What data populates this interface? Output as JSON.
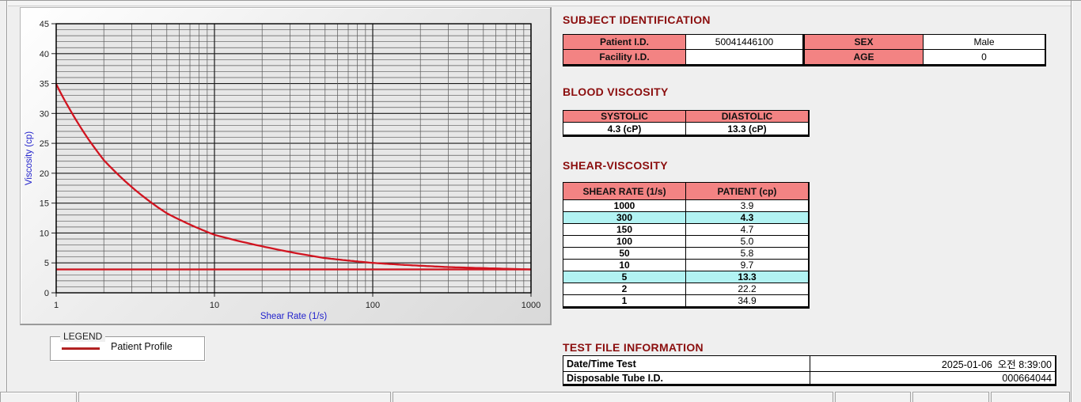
{
  "colors": {
    "title": "#8b0e0e",
    "header_pink": "#f38383",
    "highlight_cyan": "#b2f3f3",
    "series_red": "#d11420",
    "legend_red": "#b22222",
    "axis_label_blue": "#2222cc"
  },
  "chart_data": {
    "type": "line",
    "title": "",
    "xlabel": "Shear Rate (1/s)",
    "ylabel": "Viscosity (cp)",
    "x_scale": "log",
    "xlim": [
      1,
      1000
    ],
    "ylim": [
      0,
      45
    ],
    "y_tick_step_major": 5,
    "y_tick_step_minor": 1,
    "x_ticks": [
      1,
      10,
      100,
      1000
    ],
    "grid": true,
    "legend_position": "below-left",
    "series": [
      {
        "name": "Patient Profile",
        "color": "#d11420",
        "x": [
          1,
          2,
          5,
          10,
          50,
          100,
          150,
          300,
          1000
        ],
        "y": [
          34.9,
          22.2,
          13.3,
          9.7,
          5.8,
          5.0,
          4.7,
          4.3,
          3.9
        ]
      },
      {
        "name": "High-shear asymptote line",
        "color": "#d11420",
        "x": [
          1,
          1000
        ],
        "y": [
          3.9,
          3.9
        ]
      }
    ]
  },
  "legend": {
    "title": "LEGEND",
    "entries": [
      {
        "label": "Patient Profile",
        "color": "#b22222"
      }
    ]
  },
  "subject_identification": {
    "title": "SUBJECT IDENTIFICATION",
    "patient_id_label": "Patient I.D.",
    "patient_id_value": "50041446100",
    "facility_id_label": "Facility I.D.",
    "facility_id_value": "",
    "sex_label": "SEX",
    "sex_value": "Male",
    "age_label": "AGE",
    "age_value": "0"
  },
  "blood_viscosity": {
    "title": "BLOOD VISCOSITY",
    "systolic_label": "SYSTOLIC",
    "diastolic_label": "DIASTOLIC",
    "systolic_value": "4.3 (cP)",
    "diastolic_value": "13.3 (cP)"
  },
  "shear_viscosity": {
    "title": "SHEAR-VISCOSITY",
    "col_shear_rate": "SHEAR RATE (1/s)",
    "col_patient": "PATIENT (cp)",
    "rows": [
      {
        "rate": "1000",
        "patient": "3.9",
        "highlight": false
      },
      {
        "rate": "300",
        "patient": "4.3",
        "highlight": true
      },
      {
        "rate": "150",
        "patient": "4.7",
        "highlight": false
      },
      {
        "rate": "100",
        "patient": "5.0",
        "highlight": false
      },
      {
        "rate": "50",
        "patient": "5.8",
        "highlight": false
      },
      {
        "rate": "10",
        "patient": "9.7",
        "highlight": false
      },
      {
        "rate": "5",
        "patient": "13.3",
        "highlight": true
      },
      {
        "rate": "2",
        "patient": "22.2",
        "highlight": false
      },
      {
        "rate": "1",
        "patient": "34.9",
        "highlight": false
      }
    ]
  },
  "test_file_information": {
    "title": "TEST FILE INFORMATION",
    "date_label": "Date/Time Test",
    "date_value": "2025-01-06  오전 8:39:00",
    "tube_label": "Disposable Tube I.D.",
    "tube_value": "000664044"
  }
}
